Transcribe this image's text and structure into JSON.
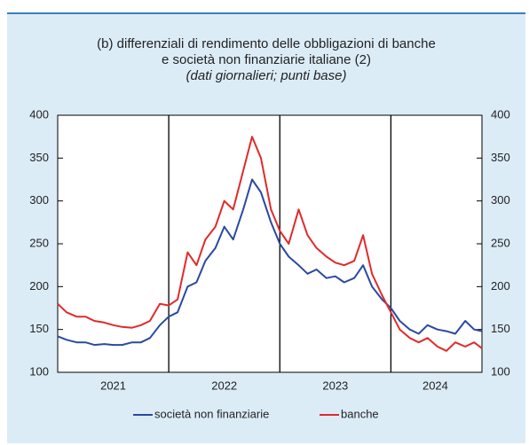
{
  "chart_data": {
    "type": "line",
    "title": [
      "(b) differenziali di rendimento delle obbligazioni di banche",
      "e società non finanziarie italiane (2)"
    ],
    "subtitle": "(dati giornalieri; punti base)",
    "x": [
      2021.0,
      2021.08,
      2021.17,
      2021.25,
      2021.33,
      2021.42,
      2021.5,
      2021.58,
      2021.67,
      2021.75,
      2021.83,
      2021.92,
      2022.0,
      2022.08,
      2022.17,
      2022.25,
      2022.33,
      2022.42,
      2022.5,
      2022.58,
      2022.67,
      2022.75,
      2022.83,
      2022.92,
      2023.0,
      2023.08,
      2023.17,
      2023.25,
      2023.33,
      2023.42,
      2023.5,
      2023.58,
      2023.67,
      2023.75,
      2023.83,
      2023.92,
      2024.0,
      2024.08,
      2024.17,
      2024.25,
      2024.33,
      2024.42,
      2024.5,
      2024.58,
      2024.67,
      2024.75,
      2024.82
    ],
    "xlim": [
      2021.0,
      2024.82
    ],
    "xticks": [
      {
        "value": 2021.5,
        "label": "2021"
      },
      {
        "value": 2022.5,
        "label": "2022"
      },
      {
        "value": 2023.5,
        "label": "2023"
      },
      {
        "value": 2024.4,
        "label": "2024"
      }
    ],
    "vlines": [
      2022,
      2023,
      2024
    ],
    "ylim": [
      100,
      400
    ],
    "yticks": [
      100,
      150,
      200,
      250,
      300,
      350,
      400
    ],
    "right_axis": true,
    "series": [
      {
        "name": "società non finanziarie",
        "color": "#2a4aa0",
        "values": [
          142,
          138,
          135,
          135,
          132,
          133,
          132,
          132,
          135,
          135,
          140,
          155,
          165,
          170,
          200,
          205,
          230,
          245,
          270,
          255,
          290,
          325,
          310,
          275,
          250,
          235,
          225,
          215,
          220,
          210,
          212,
          205,
          210,
          225,
          200,
          185,
          175,
          160,
          150,
          145,
          155,
          150,
          148,
          145,
          160,
          150,
          148
        ]
      },
      {
        "name": "banche",
        "color": "#e02a2a",
        "values": [
          180,
          170,
          165,
          165,
          160,
          158,
          155,
          153,
          152,
          155,
          160,
          180,
          178,
          185,
          240,
          225,
          255,
          270,
          300,
          290,
          335,
          375,
          350,
          290,
          265,
          250,
          290,
          260,
          245,
          235,
          228,
          225,
          230,
          260,
          215,
          190,
          170,
          150,
          140,
          135,
          140,
          130,
          125,
          135,
          130,
          135,
          128
        ]
      }
    ]
  }
}
